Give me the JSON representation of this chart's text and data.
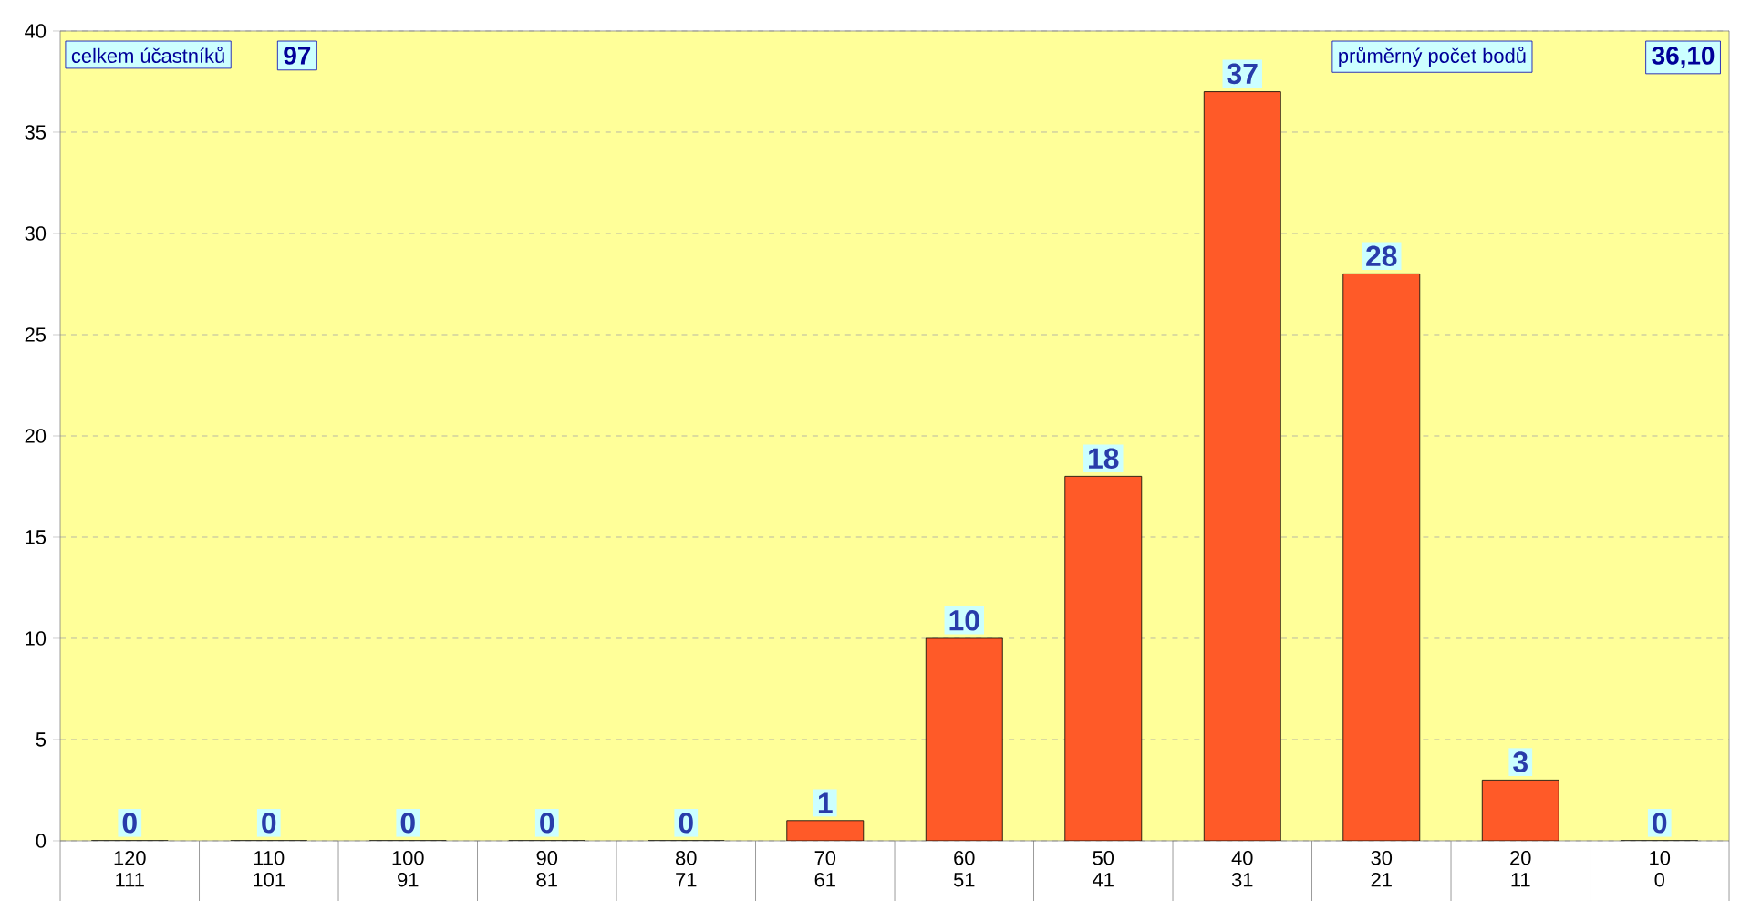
{
  "chart_data": {
    "type": "bar",
    "categories": [
      "120 111",
      "110 101",
      "100 91",
      "90 81",
      "80 71",
      "70 61",
      "60 51",
      "50 41",
      "40 31",
      "30 21",
      "20 11",
      "10 0"
    ],
    "values": [
      0,
      0,
      0,
      0,
      0,
      1,
      10,
      18,
      37,
      28,
      3,
      0
    ],
    "color": "#ff5a28",
    "ylim": [
      0,
      40
    ],
    "yticks": [
      0,
      5,
      10,
      15,
      20,
      25,
      30,
      35,
      40
    ],
    "grid": "y",
    "data_labels": true,
    "annotations": [
      "celkem účastníků",
      "97",
      "průměrný počet bodů",
      "36,10"
    ]
  }
}
